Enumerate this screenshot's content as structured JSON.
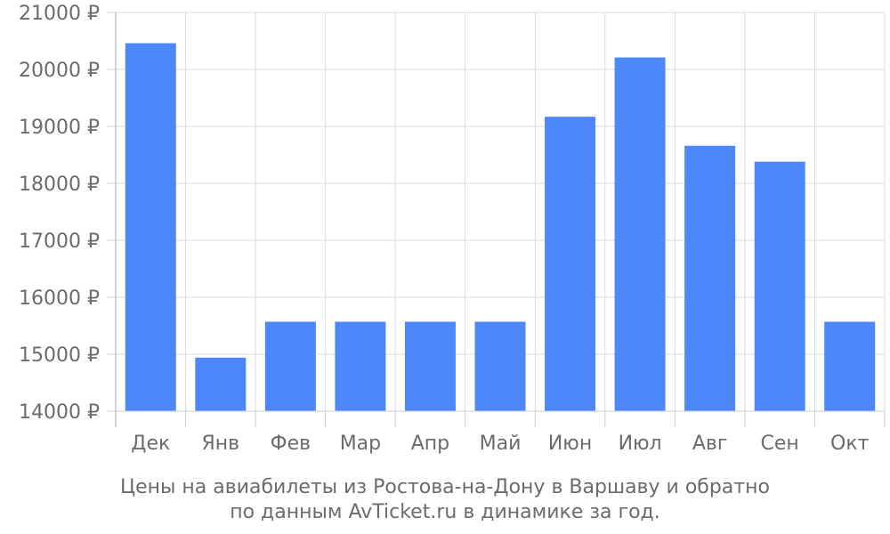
{
  "chart_data": {
    "type": "bar",
    "categories": [
      "Дек",
      "Янв",
      "Фев",
      "Мар",
      "Апр",
      "Май",
      "Июн",
      "Июл",
      "Авг",
      "Сен",
      "Окт"
    ],
    "values": [
      20460,
      14940,
      15570,
      15570,
      15570,
      15570,
      19170,
      20210,
      18660,
      18380,
      15570
    ],
    "ylim": [
      14000,
      21000
    ],
    "yticks": [
      14000,
      15000,
      16000,
      17000,
      18000,
      19000,
      20000,
      21000
    ],
    "ytick_labels": [
      "14000 ₽",
      "15000 ₽",
      "16000 ₽",
      "17000 ₽",
      "18000 ₽",
      "19000 ₽",
      "20000 ₽",
      "21000 ₽"
    ],
    "bar_color": "#4d88fb",
    "grid": true,
    "caption_line1": "Цены на авиабилеты из Ростова-на-Дону в Варшаву и обратно",
    "caption_line2": "по данным AvTicket.ru в динамике за год."
  }
}
